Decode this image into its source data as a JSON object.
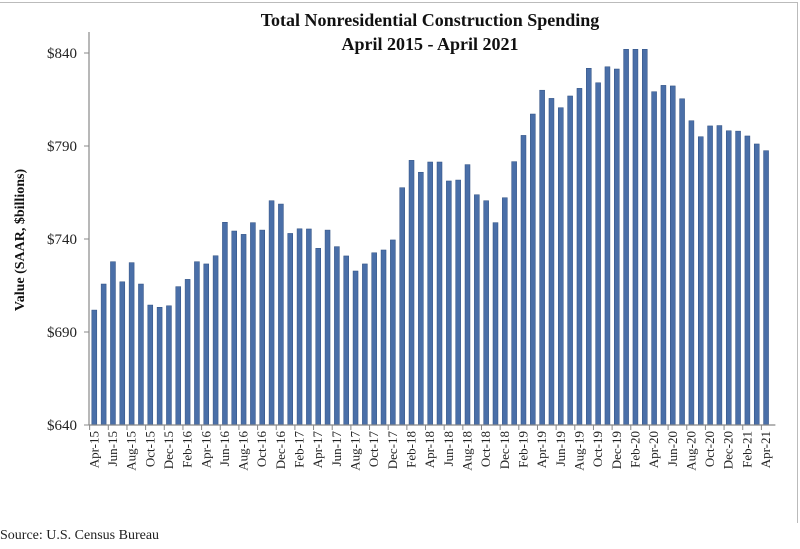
{
  "chart_data": {
    "type": "bar",
    "title": "Total Nonresidential Construction Spending",
    "subtitle": "April 2015 - April 2021",
    "ylabel": "Value (SAAR, $billions)",
    "xlabel": "",
    "ylim": [
      640,
      850
    ],
    "yticks": [
      "$640",
      "$690",
      "$740",
      "$790",
      "$840"
    ],
    "ytick_values": [
      640,
      690,
      740,
      790,
      840
    ],
    "grid": false,
    "bar_color": "#4a6fa8",
    "categories": [
      "Apr-15",
      "May-15",
      "Jun-15",
      "Jul-15",
      "Aug-15",
      "Sep-15",
      "Oct-15",
      "Nov-15",
      "Dec-15",
      "Jan-16",
      "Feb-16",
      "Mar-16",
      "Apr-16",
      "May-16",
      "Jun-16",
      "Jul-16",
      "Aug-16",
      "Sep-16",
      "Oct-16",
      "Nov-16",
      "Dec-16",
      "Jan-17",
      "Feb-17",
      "Mar-17",
      "Apr-17",
      "May-17",
      "Jun-17",
      "Jul-17",
      "Aug-17",
      "Sep-17",
      "Oct-17",
      "Nov-17",
      "Dec-17",
      "Jan-18",
      "Feb-18",
      "Mar-18",
      "Apr-18",
      "May-18",
      "Jun-18",
      "Jul-18",
      "Aug-18",
      "Sep-18",
      "Oct-18",
      "Nov-18",
      "Dec-18",
      "Jan-19",
      "Feb-19",
      "Mar-19",
      "Apr-19",
      "May-19",
      "Jun-19",
      "Jul-19",
      "Aug-19",
      "Sep-19",
      "Oct-19",
      "Nov-19",
      "Dec-19",
      "Jan-20",
      "Feb-20",
      "Mar-20",
      "Apr-20",
      "May-20",
      "Jun-20",
      "Jul-20",
      "Aug-20",
      "Sep-20",
      "Oct-20",
      "Nov-20",
      "Dec-20",
      "Jan-21",
      "Feb-21",
      "Mar-21",
      "Apr-21"
    ],
    "values": [
      701.8,
      715.8,
      727.8,
      717.0,
      727.3,
      715.8,
      704.5,
      703.3,
      704.1,
      714.4,
      718.3,
      727.8,
      726.6,
      731.0,
      749.0,
      744.3,
      742.5,
      748.8,
      744.8,
      760.6,
      758.8,
      743.0,
      745.5,
      745.4,
      735.0,
      744.8,
      735.9,
      730.9,
      722.8,
      726.6,
      732.6,
      734.1,
      739.5,
      767.6,
      782.3,
      775.9,
      781.4,
      781.4,
      771.2,
      771.7,
      780.0,
      763.8,
      760.6,
      748.8,
      762.2,
      781.6,
      795.7,
      807.2,
      820.0,
      815.6,
      810.6,
      816.9,
      821.0,
      831.8,
      824.0,
      832.6,
      831.4,
      842.0,
      842.0,
      842.0,
      819.2,
      822.6,
      822.3,
      815.4,
      803.6,
      795.0,
      800.8,
      801.0,
      798.2,
      798.0,
      795.4,
      791.1,
      787.5
    ]
  },
  "source": "Source:  U.S. Census Bureau"
}
